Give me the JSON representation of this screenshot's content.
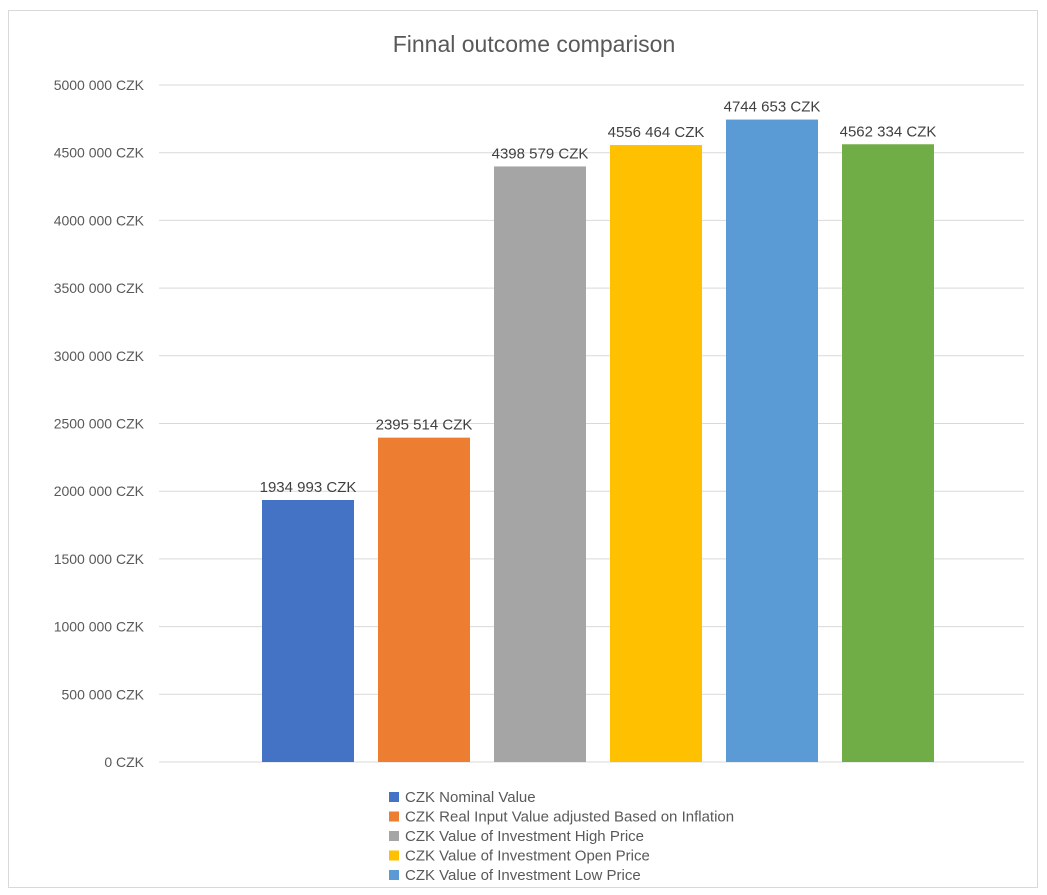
{
  "chart_data": {
    "type": "bar",
    "title": "Finnal outcome comparison",
    "xlabel": "",
    "ylabel": "",
    "ylim": [
      0,
      5000000
    ],
    "y_ticks": [
      0,
      500000,
      1000000,
      1500000,
      2000000,
      2500000,
      3000000,
      3500000,
      4000000,
      4500000,
      5000000
    ],
    "y_tick_labels": [
      "0 CZK",
      "500 000 CZK",
      "1000 000 CZK",
      "1500 000 CZK",
      "2000 000 CZK",
      "2500 000 CZK",
      "3000 000 CZK",
      "3500 000 CZK",
      "4000 000 CZK",
      "4500 000 CZK",
      "5000 000 CZK"
    ],
    "grid": true,
    "legend_position": "bottom",
    "series": [
      {
        "name": "CZK Nominal Value",
        "value": 1934993,
        "label": "1934 993 CZK",
        "color": "#4472c4"
      },
      {
        "name": "CZK Real Input Value adjusted Based on Inflation",
        "value": 2395514,
        "label": "2395 514 CZK",
        "color": "#ed7d31"
      },
      {
        "name": "CZK Value of Investment High Price",
        "value": 4398579,
        "label": "4398 579 CZK",
        "color": "#a5a5a5"
      },
      {
        "name": "CZK Value of Investment Open Price",
        "value": 4556464,
        "label": "4556 464 CZK",
        "color": "#ffc000"
      },
      {
        "name": "CZK Value of Investment Low Price",
        "value": 4744653,
        "label": "4744 653 CZK",
        "color": "#5b9bd5"
      },
      {
        "name": "",
        "value": 4562334,
        "label": "4562 334 CZK",
        "color": "#70ad47"
      }
    ]
  }
}
